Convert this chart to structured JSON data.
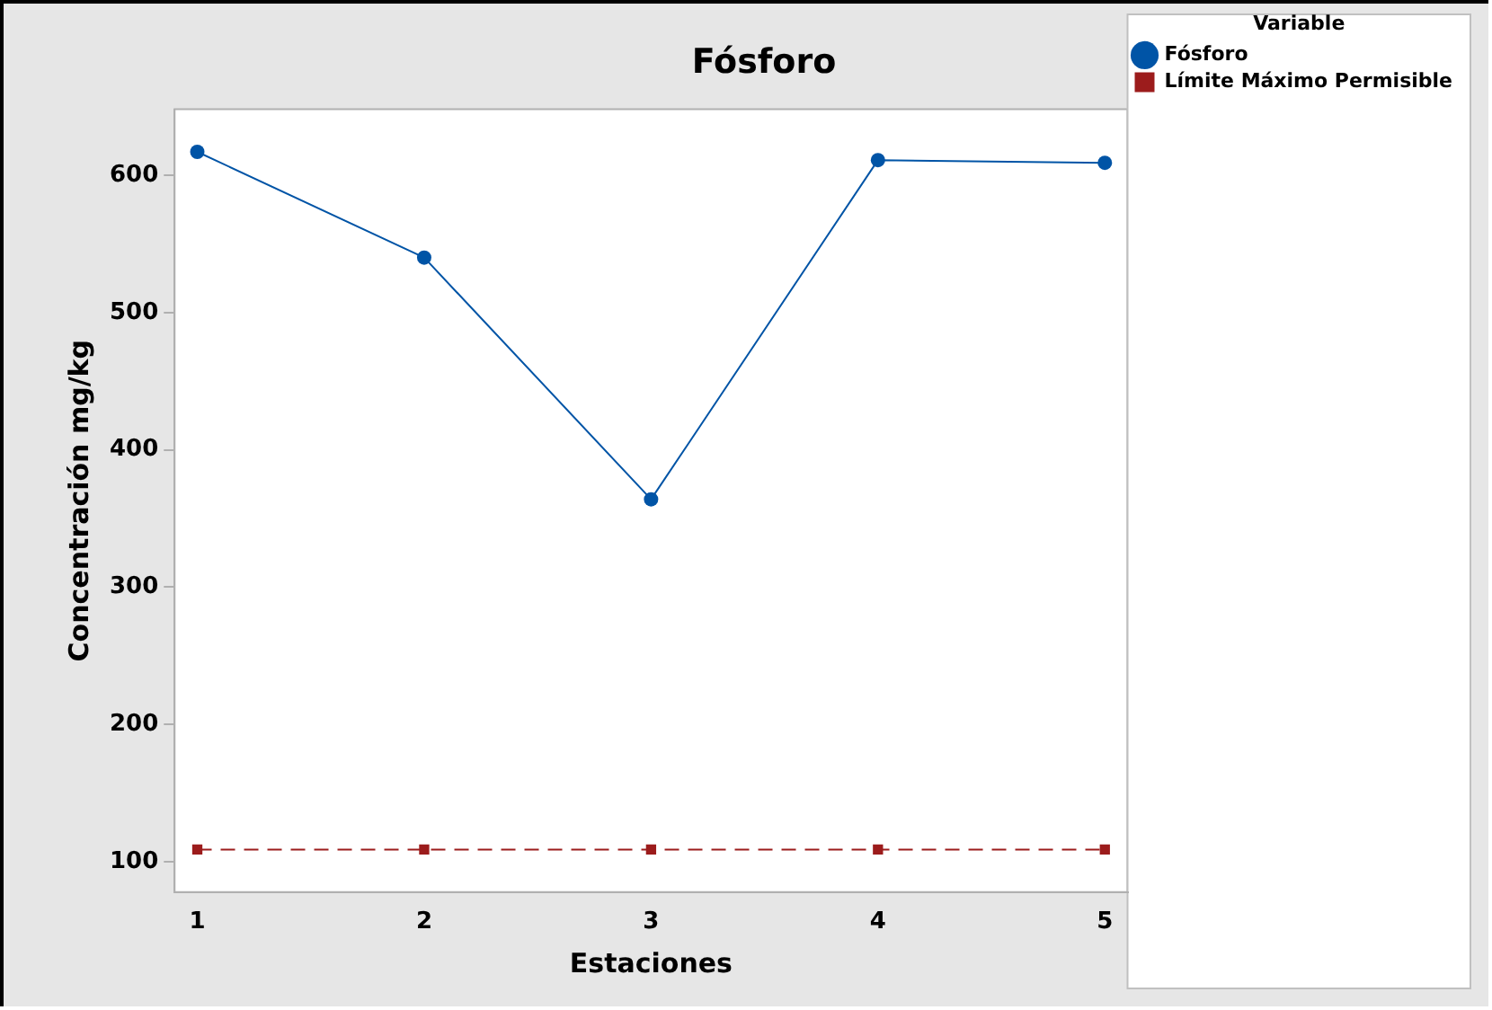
{
  "chart_data": {
    "type": "line",
    "title": "Fósforo",
    "xlabel": "Estaciones",
    "ylabel": "Concentración mg/kg",
    "legend_title": "Variable",
    "x": [
      1,
      2,
      3,
      4,
      5
    ],
    "series": [
      {
        "name": "Fósforo",
        "color": "#0054a6",
        "values": [
          617,
          540,
          364,
          611,
          609
        ],
        "marker": "circle",
        "line_style": "solid"
      },
      {
        "name": "Límite Máximo Permisible",
        "color": "#9c1c1c",
        "values": [
          109,
          109,
          109,
          109,
          109
        ],
        "marker": "square",
        "line_style": "dashed"
      }
    ],
    "xlim": [
      0.9,
      5.1
    ],
    "xticks": [
      1,
      2,
      3,
      4,
      5
    ],
    "ylim": [
      78,
      648
    ],
    "yticks": [
      100,
      200,
      300,
      400,
      500,
      600
    ],
    "grid": false,
    "legend": "top right"
  }
}
